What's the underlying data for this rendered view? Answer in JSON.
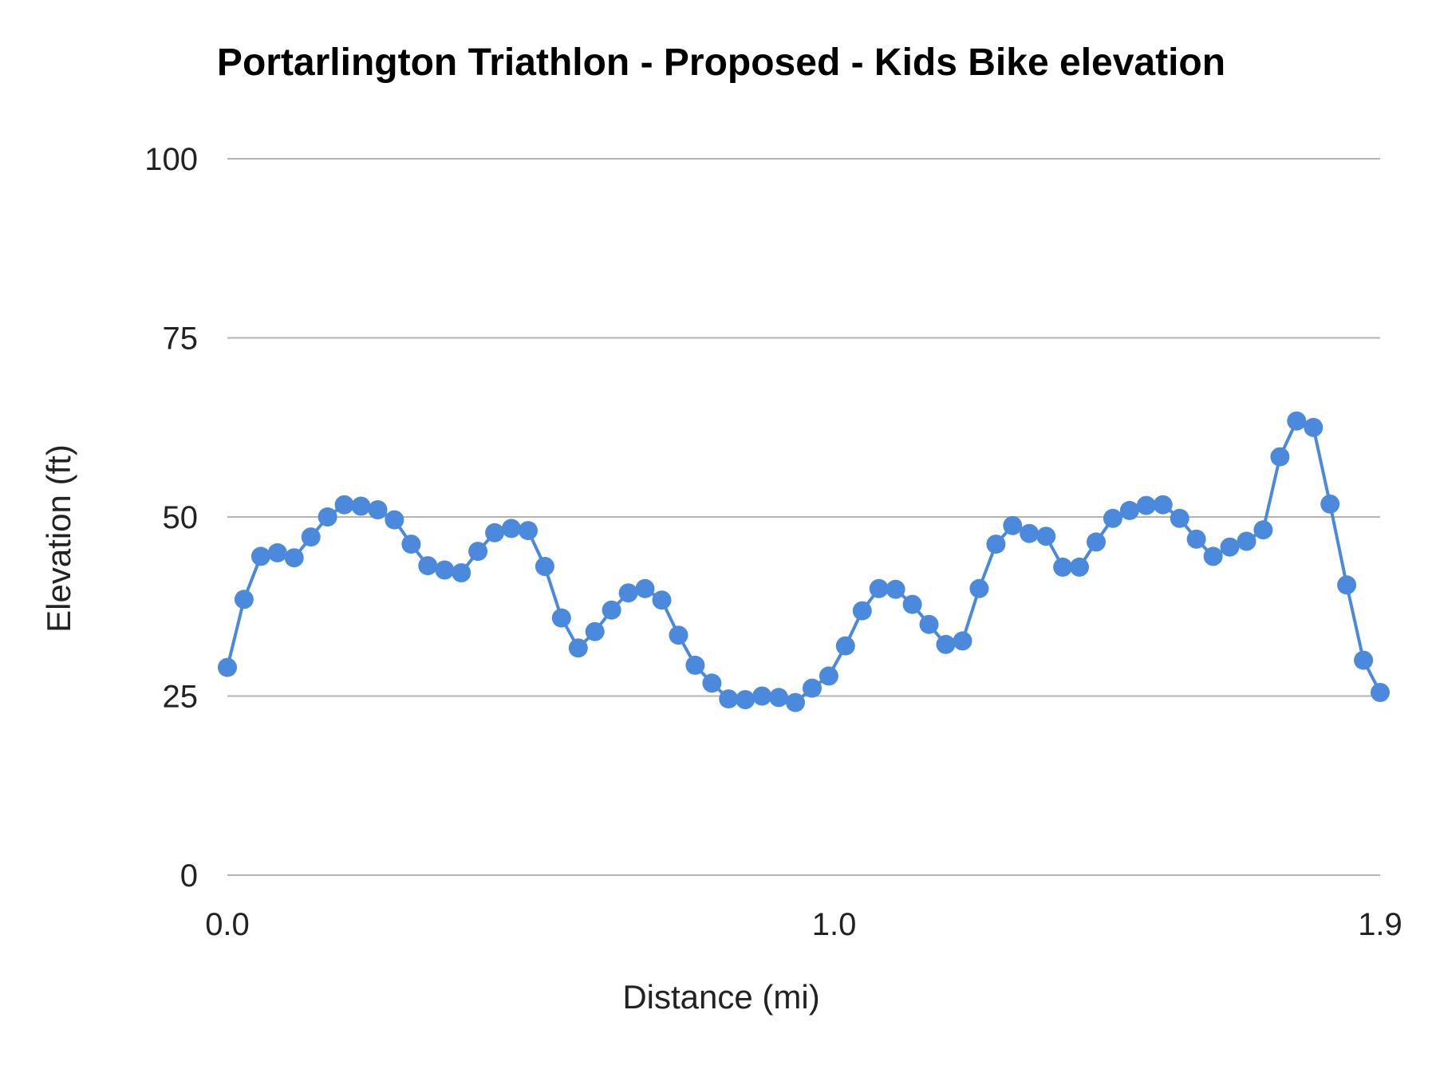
{
  "colors": {
    "series": "#4a89dc",
    "grid": "#b3b3b3",
    "background": "#ffffff"
  },
  "chart_data": {
    "type": "line",
    "title": "Portarlington Triathlon - Proposed  - Kids Bike elevation",
    "xlabel": "Distance (mi)",
    "ylabel": "Elevation (ft)",
    "xlim": [
      0.0,
      1.9
    ],
    "ylim": [
      0,
      100
    ],
    "x_ticks": [
      {
        "value": 0.0,
        "label": "0.0"
      },
      {
        "value": 1.0,
        "label": "1.0"
      },
      {
        "value": 1.9,
        "label": "1.9"
      }
    ],
    "y_ticks": [
      {
        "value": 0,
        "label": "0"
      },
      {
        "value": 25,
        "label": "25"
      },
      {
        "value": 50,
        "label": "50"
      },
      {
        "value": 75,
        "label": "75"
      },
      {
        "value": 100,
        "label": "100"
      }
    ],
    "grid": true,
    "legend": "none",
    "series": [
      {
        "x": [
          0.0,
          0.0275,
          0.0551,
          0.0826,
          0.1101,
          0.1377,
          0.1652,
          0.1928,
          0.2203,
          0.2478,
          0.2754,
          0.3029,
          0.3304,
          0.358,
          0.3855,
          0.413,
          0.4406,
          0.4681,
          0.4957,
          0.5232,
          0.5507,
          0.5783,
          0.6058,
          0.6333,
          0.6609,
          0.6884,
          0.7159,
          0.7435,
          0.771,
          0.7986,
          0.8261,
          0.8536,
          0.8812,
          0.9087,
          0.9362,
          0.9638,
          0.9913,
          1.0188,
          1.0464,
          1.0739,
          1.1014,
          1.129,
          1.1565,
          1.1841,
          1.2116,
          1.2391,
          1.2667,
          1.2942,
          1.3217,
          1.3493,
          1.3768,
          1.4043,
          1.4319,
          1.4594,
          1.487,
          1.5145,
          1.542,
          1.5696,
          1.5971,
          1.6246,
          1.6522,
          1.6797,
          1.7072,
          1.7348,
          1.7623,
          1.7899,
          1.8174,
          1.8449,
          1.8725,
          1.9
        ],
        "values": [
          29.0,
          38.5,
          44.5,
          45.0,
          44.3,
          47.2,
          50.0,
          51.7,
          51.5,
          51.0,
          49.6,
          46.2,
          43.2,
          42.6,
          42.2,
          45.2,
          47.8,
          48.4,
          48.1,
          43.1,
          35.9,
          31.7,
          34.0,
          37.0,
          39.4,
          40.0,
          38.4,
          33.5,
          29.3,
          26.8,
          24.6,
          24.5,
          25.0,
          24.8,
          24.1,
          26.1,
          27.8,
          32.0,
          36.9,
          40.0,
          39.9,
          37.8,
          35.0,
          32.2,
          32.7,
          40.0,
          46.2,
          48.8,
          47.7,
          47.3,
          43.0,
          43.0,
          46.5,
          49.8,
          50.9,
          51.6,
          51.7,
          49.8,
          46.9,
          44.5,
          45.8,
          46.6,
          48.2,
          58.4,
          63.4,
          62.5,
          51.8,
          40.5,
          30.0,
          25.5
        ]
      }
    ]
  }
}
